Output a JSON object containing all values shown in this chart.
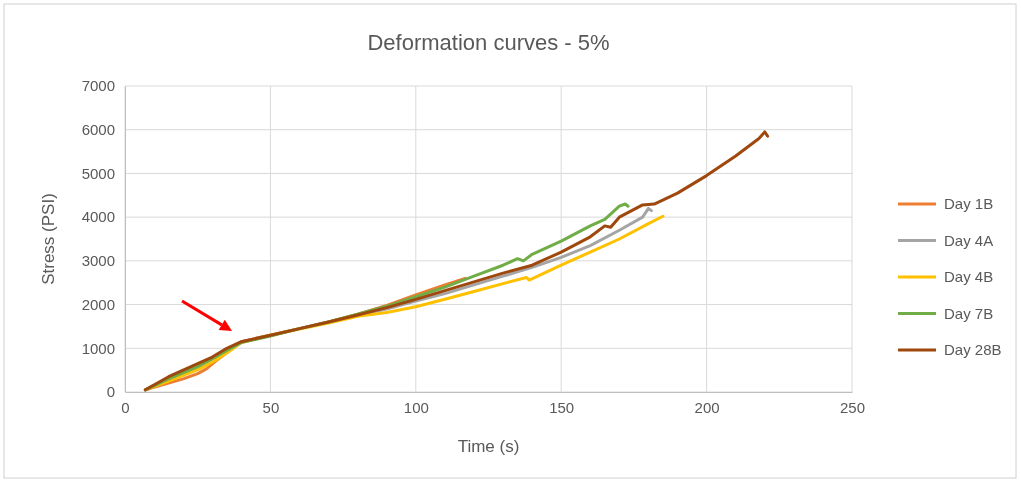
{
  "chart_data": {
    "type": "line",
    "title": "Deformation curves - 5%",
    "xlabel": "Time (s)",
    "ylabel": "Stress (PSI)",
    "xlim": [
      0,
      250
    ],
    "xticks": [
      0,
      50,
      100,
      150,
      200,
      250
    ],
    "ylim": [
      0,
      7000
    ],
    "yticks": [
      0,
      1000,
      2000,
      3000,
      4000,
      5000,
      6000,
      7000
    ],
    "grid": true,
    "legend": "right",
    "marker": "none",
    "line_style": "solid",
    "series": [
      {
        "name": "Day 1B",
        "color": "#ed7d31",
        "x": [
          7,
          12,
          20,
          25,
          28,
          32,
          35,
          40,
          50,
          60,
          70,
          80,
          90,
          100,
          110,
          117
        ],
        "values": [
          50,
          150,
          300,
          420,
          530,
          750,
          900,
          1150,
          1300,
          1450,
          1600,
          1780,
          1980,
          2220,
          2450,
          2600
        ]
      },
      {
        "name": "Day 4A",
        "color": "#a5a5a5",
        "x": [
          7,
          15,
          25,
          30,
          35,
          40,
          50,
          60,
          70,
          80,
          90,
          100,
          110,
          120,
          130,
          140,
          150,
          160,
          170,
          178,
          180,
          181
        ],
        "values": [
          50,
          300,
          580,
          750,
          950,
          1150,
          1300,
          1450,
          1600,
          1760,
          1900,
          2080,
          2250,
          2450,
          2650,
          2850,
          3080,
          3350,
          3700,
          4000,
          4200,
          4150
        ]
      },
      {
        "name": "Day 4B",
        "color": "#ffc000",
        "x": [
          7,
          15,
          25,
          30,
          35,
          40,
          50,
          60,
          70,
          80,
          90,
          100,
          110,
          120,
          130,
          138,
          139,
          150,
          160,
          170,
          180,
          185
        ],
        "values": [
          50,
          250,
          510,
          680,
          890,
          1130,
          1300,
          1440,
          1580,
          1730,
          1820,
          1950,
          2120,
          2300,
          2480,
          2620,
          2560,
          2900,
          3200,
          3500,
          3850,
          4020
        ]
      },
      {
        "name": "Day 7B",
        "color": "#70ad47",
        "x": [
          7,
          15,
          25,
          30,
          35,
          40,
          50,
          60,
          70,
          80,
          90,
          100,
          110,
          120,
          130,
          135,
          137,
          140,
          150,
          160,
          165,
          170,
          172,
          173
        ],
        "values": [
          50,
          300,
          580,
          760,
          950,
          1130,
          1280,
          1450,
          1600,
          1780,
          1960,
          2180,
          2400,
          2650,
          2900,
          3050,
          3000,
          3150,
          3450,
          3800,
          3950,
          4250,
          4300,
          4250
        ]
      },
      {
        "name": "Day 28B",
        "color": "#9e480e",
        "x": [
          7,
          15,
          25,
          30,
          35,
          40,
          50,
          60,
          70,
          80,
          90,
          100,
          110,
          120,
          130,
          140,
          150,
          160,
          165,
          167,
          170,
          178,
          182,
          190,
          200,
          210,
          218,
          220,
          221
        ],
        "values": [
          50,
          350,
          650,
          800,
          1000,
          1150,
          1300,
          1450,
          1600,
          1760,
          1930,
          2120,
          2320,
          2520,
          2720,
          2900,
          3200,
          3550,
          3800,
          3770,
          4000,
          4280,
          4300,
          4550,
          4950,
          5400,
          5800,
          5950,
          5850
        ]
      }
    ]
  }
}
